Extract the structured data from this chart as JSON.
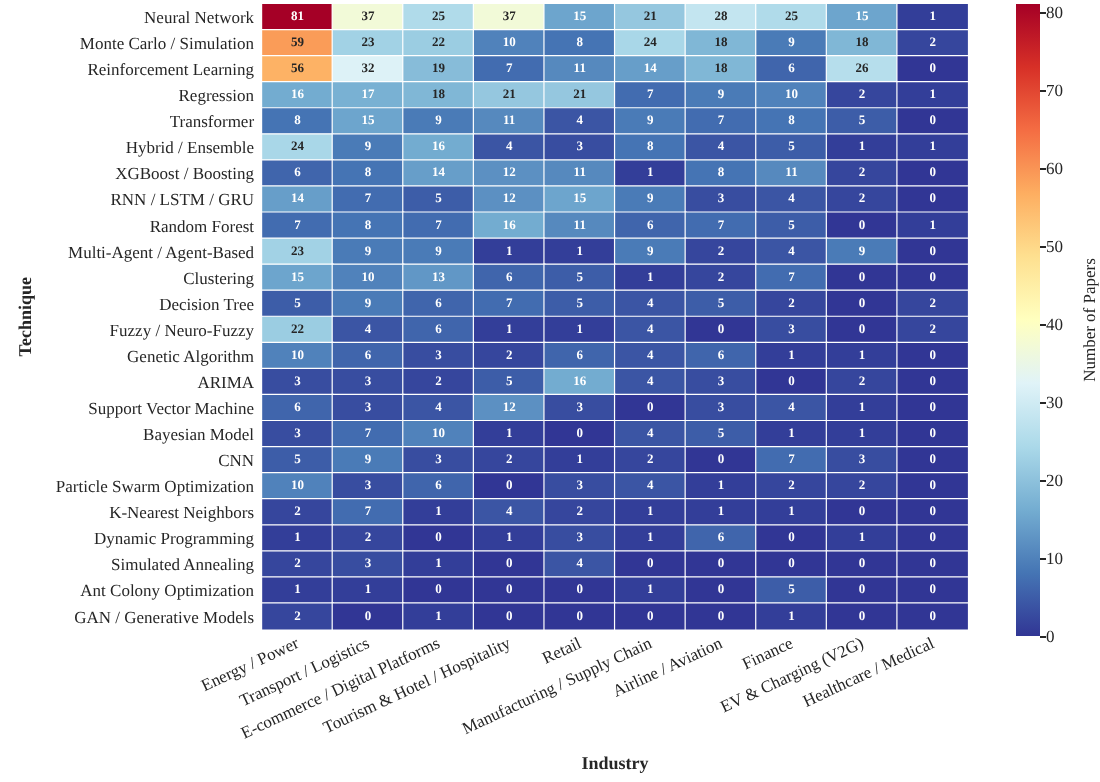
{
  "chart_data": {
    "type": "heatmap",
    "xlabel": "Industry",
    "ylabel": "Technique",
    "clabel": "Number of Papers",
    "categories": [
      "Energy / Power",
      "Transport / Logistics",
      "E-commerce / Digital Platforms",
      "Tourism & Hotel / Hospitality",
      "Retail",
      "Manufacturing / Supply Chain",
      "Airline / Aviation",
      "Finance",
      "EV & Charging (V2G)",
      "Healthcare / Medical"
    ],
    "y_categories": [
      "Neural Network",
      "Monte Carlo / Simulation",
      "Reinforcement Learning",
      "Regression",
      "Transformer",
      "Hybrid / Ensemble",
      "XGBoost / Boosting",
      "RNN / LSTM / GRU",
      "Random Forest",
      "Multi-Agent / Agent-Based",
      "Clustering",
      "Decision Tree",
      "Fuzzy / Neuro-Fuzzy",
      "Genetic Algorithm",
      "ARIMA",
      "Support Vector Machine",
      "Bayesian Model",
      "CNN",
      "Particle Swarm Optimization",
      "K-Nearest Neighbors",
      "Dynamic Programming",
      "Simulated Annealing",
      "Ant Colony Optimization",
      "GAN / Generative Models"
    ],
    "cells": [
      [
        81,
        37,
        25,
        37,
        15,
        21,
        28,
        25,
        15,
        1
      ],
      [
        59,
        23,
        22,
        10,
        8,
        24,
        18,
        9,
        18,
        2
      ],
      [
        56,
        32,
        19,
        7,
        11,
        14,
        18,
        6,
        26,
        0
      ],
      [
        16,
        17,
        18,
        21,
        21,
        7,
        9,
        10,
        2,
        1
      ],
      [
        8,
        15,
        9,
        11,
        4,
        9,
        7,
        8,
        5,
        0
      ],
      [
        24,
        9,
        16,
        4,
        3,
        8,
        4,
        5,
        1,
        1
      ],
      [
        6,
        8,
        14,
        12,
        11,
        1,
        8,
        11,
        2,
        0
      ],
      [
        14,
        7,
        5,
        12,
        15,
        9,
        3,
        4,
        2,
        0
      ],
      [
        7,
        8,
        7,
        16,
        11,
        6,
        7,
        5,
        0,
        1
      ],
      [
        23,
        9,
        9,
        1,
        1,
        9,
        2,
        4,
        9,
        0
      ],
      [
        15,
        10,
        13,
        6,
        5,
        1,
        2,
        7,
        0,
        0
      ],
      [
        5,
        9,
        6,
        7,
        5,
        4,
        5,
        2,
        0,
        2
      ],
      [
        22,
        4,
        6,
        1,
        1,
        4,
        0,
        3,
        0,
        2
      ],
      [
        10,
        6,
        3,
        2,
        6,
        4,
        6,
        1,
        1,
        0
      ],
      [
        3,
        3,
        2,
        5,
        16,
        4,
        3,
        0,
        2,
        0
      ],
      [
        6,
        3,
        4,
        12,
        3,
        0,
        3,
        4,
        1,
        0
      ],
      [
        3,
        7,
        10,
        1,
        0,
        4,
        5,
        1,
        1,
        0
      ],
      [
        5,
        9,
        3,
        2,
        1,
        2,
        0,
        7,
        3,
        0
      ],
      [
        10,
        3,
        6,
        0,
        3,
        4,
        1,
        2,
        2,
        0
      ],
      [
        2,
        7,
        1,
        4,
        2,
        1,
        1,
        1,
        0,
        0
      ],
      [
        1,
        2,
        0,
        1,
        3,
        1,
        6,
        0,
        1,
        0
      ],
      [
        2,
        3,
        1,
        0,
        4,
        0,
        0,
        0,
        0,
        0
      ],
      [
        1,
        1,
        0,
        0,
        0,
        1,
        0,
        5,
        0,
        0
      ],
      [
        2,
        0,
        1,
        0,
        0,
        0,
        0,
        1,
        0,
        0
      ]
    ],
    "clim": [
      0,
      81
    ],
    "cticks": [
      0,
      10,
      20,
      30,
      40,
      50,
      60,
      70,
      80
    ],
    "data_labels": true
  }
}
